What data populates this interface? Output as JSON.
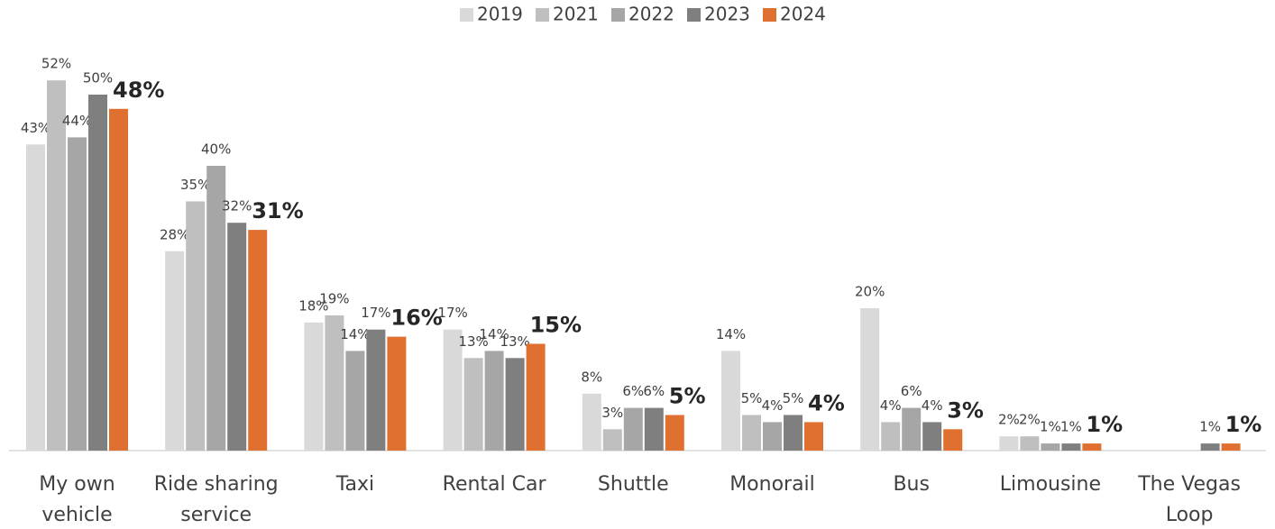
{
  "chart_data": {
    "type": "bar",
    "categories": [
      "My own vehicle",
      "Ride sharing service",
      "Taxi",
      "Rental Car",
      "Shuttle",
      "Monorail",
      "Bus",
      "Limousine",
      "The Vegas Loop"
    ],
    "series": [
      {
        "name": "2019",
        "color": "#d9d9d9",
        "values": [
          43,
          28,
          18,
          17,
          8,
          14,
          20,
          2,
          null
        ],
        "value_labels": [
          "43%",
          "28%",
          "18%",
          "17%",
          "8%",
          "14%",
          "20%",
          "2%",
          null
        ]
      },
      {
        "name": "2021",
        "color": "#bfbfbf",
        "values": [
          52,
          35,
          19,
          13,
          3,
          5,
          4,
          2,
          null
        ],
        "value_labels": [
          "52%",
          "35%",
          "19%",
          "13%",
          "3%",
          "5%",
          "4%",
          "2%",
          null
        ]
      },
      {
        "name": "2022",
        "color": "#a6a6a6",
        "values": [
          44,
          40,
          14,
          14,
          6,
          4,
          6,
          1,
          null
        ],
        "value_labels": [
          "44%",
          "40%",
          "14%",
          "14%",
          "6%",
          "4%",
          "6%",
          "1%",
          null
        ]
      },
      {
        "name": "2023",
        "color": "#7f7f7f",
        "values": [
          50,
          32,
          17,
          13,
          6,
          5,
          4,
          1,
          1
        ],
        "value_labels": [
          "50%",
          "32%",
          "17%",
          "13%",
          "6%",
          "5%",
          "4%",
          "1%",
          "1%"
        ]
      },
      {
        "name": "2024",
        "color": "#e07030",
        "values": [
          48,
          31,
          16,
          15,
          5,
          4,
          3,
          1,
          1
        ],
        "value_labels": [
          "48%",
          "31%",
          "16%",
          "15%",
          "5%",
          "4%",
          "3%",
          "1%",
          "1%"
        ]
      }
    ],
    "legend": "top"
  }
}
